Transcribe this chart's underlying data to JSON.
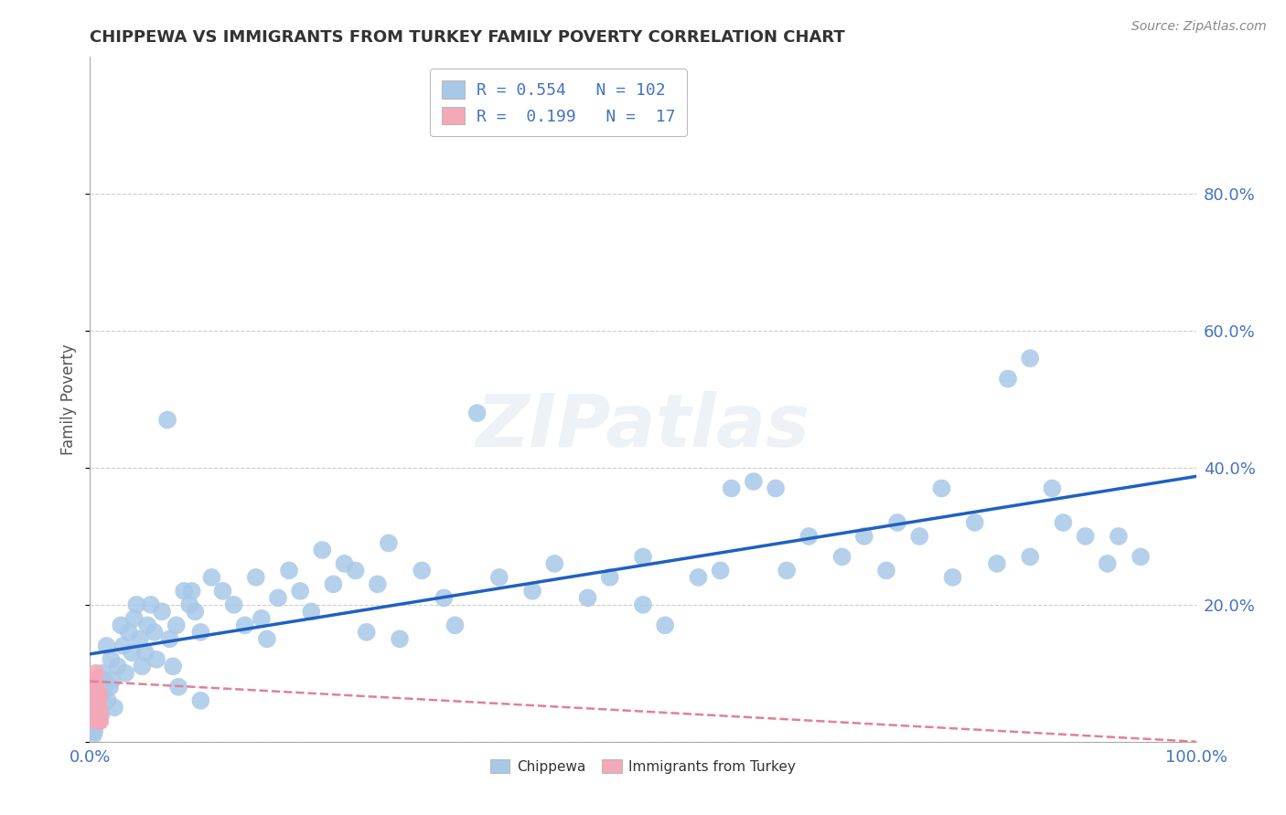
{
  "title": "CHIPPEWA VS IMMIGRANTS FROM TURKEY FAMILY POVERTY CORRELATION CHART",
  "source": "Source: ZipAtlas.com",
  "ylabel": "Family Poverty",
  "xlim": [
    0,
    1
  ],
  "ylim": [
    0,
    1
  ],
  "ytick_vals": [
    0.0,
    0.2,
    0.4,
    0.6,
    0.8
  ],
  "ytick_labels": [
    "",
    "20.0%",
    "40.0%",
    "60.0%",
    "80.0%"
  ],
  "xtick_labels_show": [
    "0.0%",
    "100.0%"
  ],
  "chippewa_color": "#a8c8e8",
  "turkey_color": "#f4a8b8",
  "chippewa_line_color": "#2060c0",
  "turkey_line_color": "#e08098",
  "watermark": "ZIPatlas",
  "background_color": "#ffffff",
  "grid_color": "#cccccc",
  "legend1_label1": "R = 0.554   N = 102",
  "legend1_label2": "R =  0.199   N =  17",
  "legend2_label1": "Chippewa",
  "legend2_label2": "Immigrants from Turkey",
  "chippewa_points": [
    [
      0.002,
      0.02
    ],
    [
      0.003,
      0.01
    ],
    [
      0.004,
      0.015
    ],
    [
      0.005,
      0.05
    ],
    [
      0.006,
      0.08
    ],
    [
      0.006,
      0.04
    ],
    [
      0.007,
      0.06
    ],
    [
      0.008,
      0.03
    ],
    [
      0.009,
      0.07
    ],
    [
      0.01,
      0.04
    ],
    [
      0.011,
      0.1
    ],
    [
      0.012,
      0.07
    ],
    [
      0.013,
      0.09
    ],
    [
      0.015,
      0.14
    ],
    [
      0.016,
      0.06
    ],
    [
      0.018,
      0.08
    ],
    [
      0.019,
      0.12
    ],
    [
      0.02,
      0.09
    ],
    [
      0.022,
      0.05
    ],
    [
      0.025,
      0.11
    ],
    [
      0.028,
      0.17
    ],
    [
      0.03,
      0.14
    ],
    [
      0.032,
      0.1
    ],
    [
      0.035,
      0.16
    ],
    [
      0.038,
      0.13
    ],
    [
      0.04,
      0.18
    ],
    [
      0.042,
      0.2
    ],
    [
      0.045,
      0.15
    ],
    [
      0.047,
      0.11
    ],
    [
      0.05,
      0.13
    ],
    [
      0.052,
      0.17
    ],
    [
      0.055,
      0.2
    ],
    [
      0.058,
      0.16
    ],
    [
      0.06,
      0.12
    ],
    [
      0.065,
      0.19
    ],
    [
      0.07,
      0.47
    ],
    [
      0.072,
      0.15
    ],
    [
      0.075,
      0.11
    ],
    [
      0.078,
      0.17
    ],
    [
      0.08,
      0.08
    ],
    [
      0.085,
      0.22
    ],
    [
      0.09,
      0.2
    ],
    [
      0.092,
      0.22
    ],
    [
      0.095,
      0.19
    ],
    [
      0.1,
      0.16
    ],
    [
      0.1,
      0.06
    ],
    [
      0.11,
      0.24
    ],
    [
      0.12,
      0.22
    ],
    [
      0.13,
      0.2
    ],
    [
      0.14,
      0.17
    ],
    [
      0.15,
      0.24
    ],
    [
      0.155,
      0.18
    ],
    [
      0.16,
      0.15
    ],
    [
      0.17,
      0.21
    ],
    [
      0.18,
      0.25
    ],
    [
      0.19,
      0.22
    ],
    [
      0.2,
      0.19
    ],
    [
      0.21,
      0.28
    ],
    [
      0.22,
      0.23
    ],
    [
      0.23,
      0.26
    ],
    [
      0.24,
      0.25
    ],
    [
      0.25,
      0.16
    ],
    [
      0.26,
      0.23
    ],
    [
      0.27,
      0.29
    ],
    [
      0.28,
      0.15
    ],
    [
      0.3,
      0.25
    ],
    [
      0.32,
      0.21
    ],
    [
      0.33,
      0.17
    ],
    [
      0.35,
      0.48
    ],
    [
      0.37,
      0.24
    ],
    [
      0.4,
      0.22
    ],
    [
      0.42,
      0.26
    ],
    [
      0.45,
      0.21
    ],
    [
      0.47,
      0.24
    ],
    [
      0.5,
      0.2
    ],
    [
      0.5,
      0.27
    ],
    [
      0.52,
      0.17
    ],
    [
      0.55,
      0.24
    ],
    [
      0.57,
      0.25
    ],
    [
      0.58,
      0.37
    ],
    [
      0.6,
      0.38
    ],
    [
      0.62,
      0.37
    ],
    [
      0.63,
      0.25
    ],
    [
      0.65,
      0.3
    ],
    [
      0.68,
      0.27
    ],
    [
      0.7,
      0.3
    ],
    [
      0.72,
      0.25
    ],
    [
      0.73,
      0.32
    ],
    [
      0.75,
      0.3
    ],
    [
      0.77,
      0.37
    ],
    [
      0.78,
      0.24
    ],
    [
      0.8,
      0.32
    ],
    [
      0.82,
      0.26
    ],
    [
      0.83,
      0.53
    ],
    [
      0.85,
      0.56
    ],
    [
      0.85,
      0.27
    ],
    [
      0.87,
      0.37
    ],
    [
      0.88,
      0.32
    ],
    [
      0.9,
      0.3
    ],
    [
      0.92,
      0.26
    ],
    [
      0.93,
      0.3
    ],
    [
      0.95,
      0.27
    ]
  ],
  "turkey_points": [
    [
      0.003,
      0.06
    ],
    [
      0.003,
      0.09
    ],
    [
      0.004,
      0.04
    ],
    [
      0.004,
      0.06
    ],
    [
      0.005,
      0.07
    ],
    [
      0.005,
      0.1
    ],
    [
      0.005,
      0.08
    ],
    [
      0.006,
      0.05
    ],
    [
      0.006,
      0.06
    ],
    [
      0.007,
      0.04
    ],
    [
      0.007,
      0.03
    ],
    [
      0.007,
      0.06
    ],
    [
      0.008,
      0.07
    ],
    [
      0.008,
      0.07
    ],
    [
      0.008,
      0.05
    ],
    [
      0.009,
      0.03
    ],
    [
      0.009,
      0.04
    ]
  ]
}
